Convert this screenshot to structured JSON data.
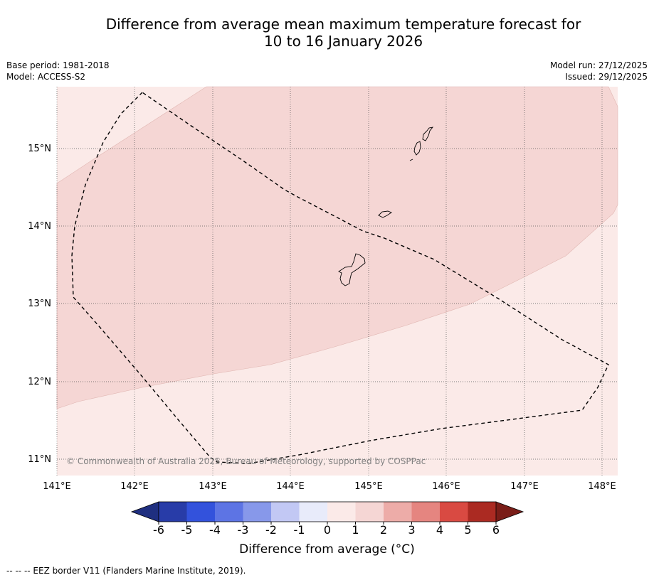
{
  "title": {
    "line1": "Difference from average mean maximum temperature forecast for",
    "line2": "10 to 16 January 2026"
  },
  "meta": {
    "base_period": "Base period: 1981-2018",
    "model": "Model: ACCESS-S2",
    "model_run": "Model run: 27/12/2025",
    "issued": "Issued: 29/12/2025"
  },
  "map": {
    "lon_range": [
      141.0,
      148.2
    ],
    "lat_range": [
      10.8,
      15.8
    ],
    "lon_ticks": [
      "141°E",
      "142°E",
      "143°E",
      "144°E",
      "145°E",
      "146°E",
      "147°E",
      "148°E"
    ],
    "lat_ticks": [
      "11°N",
      "12°N",
      "13°N",
      "14°N",
      "15°N"
    ],
    "copyright": "© Commonwealth of Australia 2025, Bureau of Meteorology, supported by COSPPac",
    "regions": [
      {
        "name": "0 to 1 °C",
        "color": "#fbeae8"
      },
      {
        "name": "1 to 2 °C",
        "color": "#f5d6d4"
      }
    ]
  },
  "colorbar": {
    "label": "Difference from average (°C)",
    "ticks": [
      "-6",
      "-5",
      "-4",
      "-3",
      "-2",
      "-1",
      "0",
      "1",
      "2",
      "3",
      "4",
      "5",
      "6"
    ],
    "colors": [
      "#283ca8",
      "#3352dc",
      "#5d74e4",
      "#8798ea",
      "#c2c8f4",
      "#e8ebfa",
      "#fbeae8",
      "#f5d6d4",
      "#edaca8",
      "#e58580",
      "#d94a42",
      "#ab2a22"
    ],
    "under_color": "#1f2f80",
    "over_color": "#7a1d18"
  },
  "footnote": "--  --  -- EEZ border V11 (Flanders Marine Institute, 2019)."
}
